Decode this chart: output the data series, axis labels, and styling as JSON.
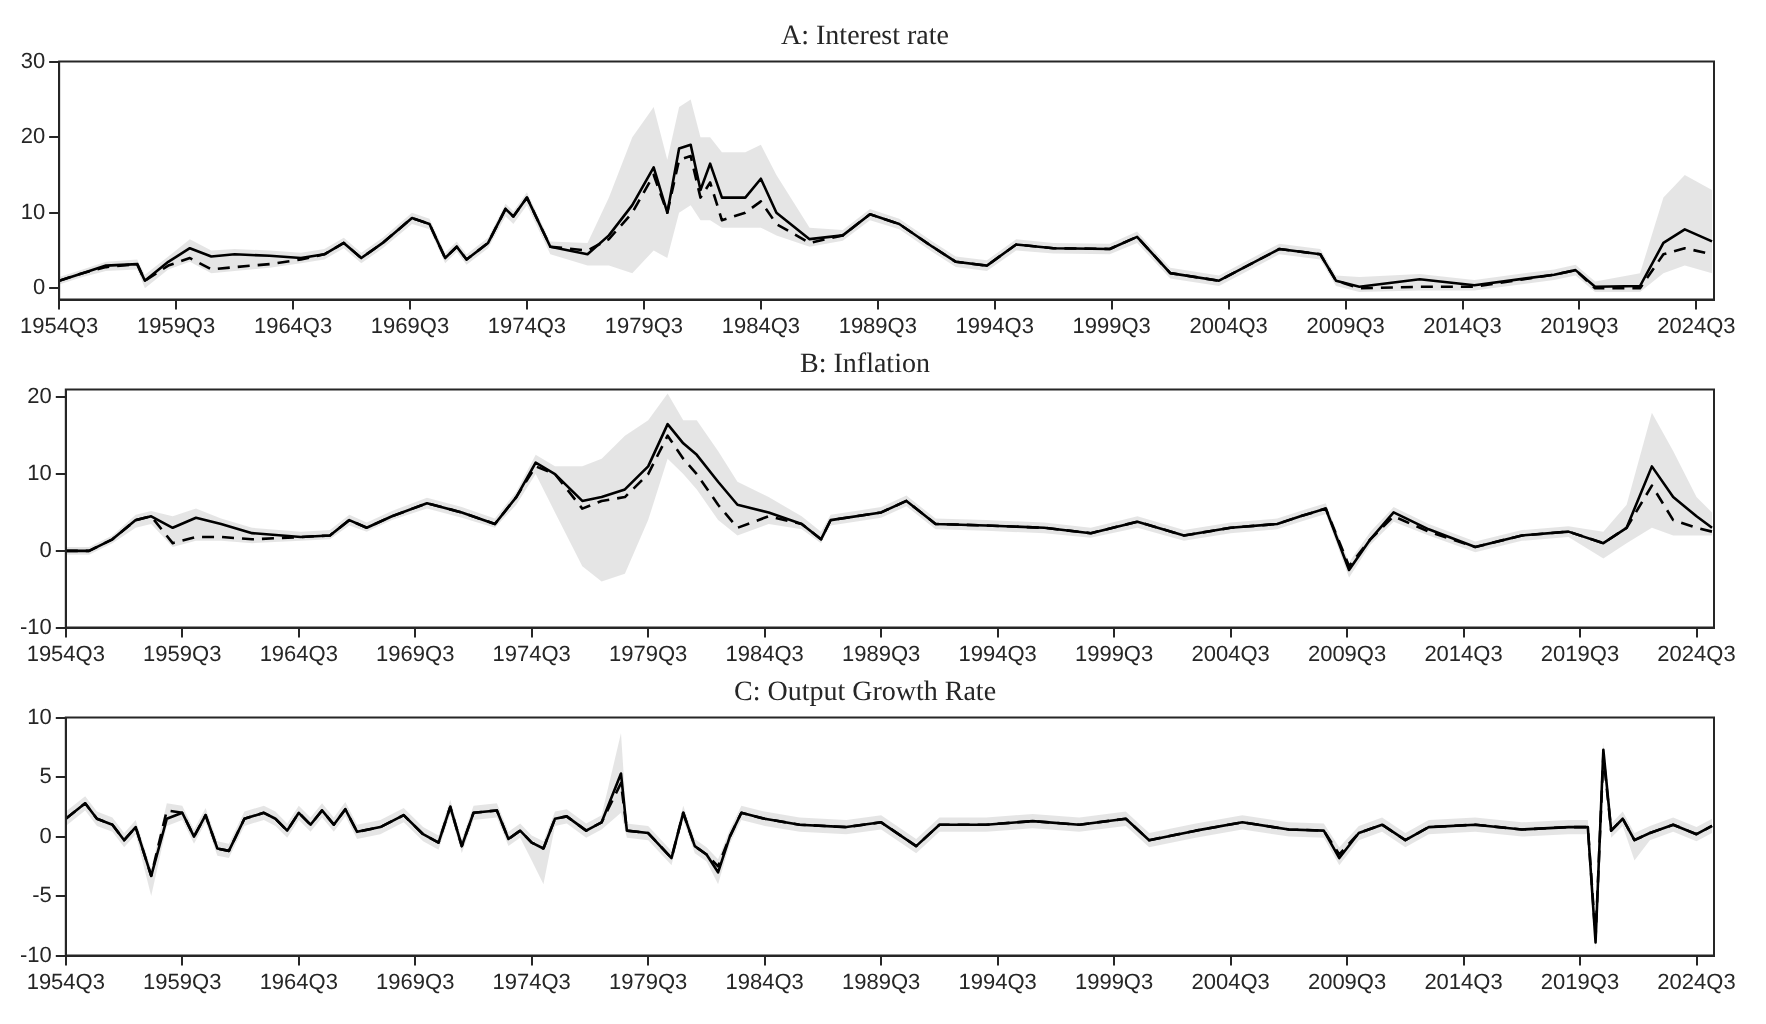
{
  "chart_data": [
    {
      "type": "line",
      "title": "A: Interest rate",
      "xlim": [
        "1954-07",
        "2025-04"
      ],
      "ylim": [
        -1.5,
        30
      ],
      "yticks": [
        0,
        10,
        20,
        30
      ],
      "grid": false,
      "legend": false,
      "marker": "none",
      "xticks": [
        {
          "value": "1954-07",
          "label": "1954Q3"
        },
        {
          "value": "1959-07",
          "label": "1959Q3"
        },
        {
          "value": "1964-07",
          "label": "1964Q3"
        },
        {
          "value": "1969-07",
          "label": "1969Q3"
        },
        {
          "value": "1974-07",
          "label": "1974Q3"
        },
        {
          "value": "1979-07",
          "label": "1979Q3"
        },
        {
          "value": "1984-07",
          "label": "1984Q3"
        },
        {
          "value": "1989-07",
          "label": "1989Q3"
        },
        {
          "value": "1994-07",
          "label": "1994Q3"
        },
        {
          "value": "1999-07",
          "label": "1999Q3"
        },
        {
          "value": "2004-07",
          "label": "2004Q3"
        },
        {
          "value": "2009-07",
          "label": "2009Q3"
        },
        {
          "value": "2014-07",
          "label": "2014Q3"
        },
        {
          "value": "2019-07",
          "label": "2019Q3"
        },
        {
          "value": "2024-07",
          "label": "2024Q3"
        }
      ],
      "x": [
        "1954-07",
        "1955-07",
        "1956-07",
        "1957-11",
        "1958-03",
        "1959-03",
        "1960-02",
        "1961-01",
        "1962-01",
        "1963-07",
        "1964-11",
        "1965-11",
        "1966-09",
        "1967-06",
        "1968-05",
        "1969-08",
        "1970-05",
        "1971-01",
        "1971-07",
        "1971-12",
        "1972-11",
        "1973-08",
        "1973-12",
        "1974-07",
        "1975-07",
        "1977-02",
        "1978-01",
        "1979-01",
        "1979-12",
        "1980-07",
        "1981-01",
        "1981-07",
        "1981-12",
        "1982-05",
        "1982-11",
        "1983-11",
        "1984-07",
        "1985-03",
        "1986-08",
        "1988-01",
        "1989-03",
        "1990-06",
        "1991-11",
        "1992-11",
        "1994-03",
        "1995-06",
        "1997-01",
        "1999-06",
        "2000-08",
        "2002-01",
        "2004-02",
        "2006-09",
        "2008-06",
        "2009-02",
        "2010-02",
        "2012-09",
        "2015-01",
        "2018-06",
        "2019-05",
        "2020-03",
        "2022-02",
        "2023-02",
        "2024-01",
        "2025-03"
      ],
      "series": [
        {
          "color": "#000000",
          "line_style": "solid",
          "values": [
            1,
            2,
            3,
            3.2,
            1,
            3.5,
            5.3,
            4.2,
            4.5,
            4.3,
            4,
            4.5,
            6,
            4,
            6,
            9.3,
            8.5,
            4,
            5.5,
            3.8,
            6,
            10.5,
            9.5,
            12,
            5.5,
            4.5,
            7,
            11,
            16,
            10,
            18.5,
            19,
            13,
            16.5,
            12,
            12,
            14.5,
            10,
            6.5,
            7,
            9.8,
            8.5,
            5.5,
            3.5,
            3,
            5.8,
            5.3,
            5.2,
            6.8,
            2,
            1,
            5.2,
            4.5,
            1,
            0.2,
            1.2,
            0.4,
            1.8,
            2.4,
            0.2,
            0.3,
            6,
            7.8,
            6.2
          ]
        },
        {
          "color": "#000000",
          "line_style": "dashed",
          "values": [
            1,
            2,
            2.8,
            3.2,
            1,
            3,
            4,
            2.5,
            2.8,
            3.2,
            3.8,
            4.5,
            6,
            4,
            6,
            9.3,
            8.5,
            4,
            5.5,
            3.8,
            6,
            10.5,
            9.5,
            12,
            5.5,
            5,
            6.5,
            10,
            15,
            10,
            17,
            17.5,
            12,
            14,
            9,
            10,
            11.5,
            8.5,
            6,
            7,
            9.8,
            8.5,
            5.5,
            3.5,
            3,
            5.8,
            5.3,
            5.2,
            6.8,
            2,
            1,
            5.2,
            4.5,
            1,
            0,
            0.2,
            0.2,
            1.8,
            2.4,
            0,
            0,
            4.5,
            5.3,
            4.5
          ],
          "lower": [
            0.5,
            1.5,
            2.3,
            2.5,
            0,
            2.5,
            3.5,
            2,
            2.3,
            2.7,
            3.3,
            3.8,
            5.3,
            3.3,
            5.3,
            8.5,
            7.8,
            3.3,
            4.8,
            3.1,
            5.3,
            9.5,
            8.5,
            11,
            4.5,
            3,
            3,
            2,
            5,
            4,
            10,
            11,
            9,
            9,
            8,
            8,
            8,
            7,
            5.5,
            6.3,
            9,
            7.8,
            4.8,
            2.8,
            2.3,
            5,
            4.6,
            4.5,
            6,
            1.3,
            0.3,
            4.5,
            3.8,
            0.3,
            -0.5,
            -0.3,
            -0.3,
            1.1,
            1.7,
            -0.5,
            -0.5,
            2,
            3,
            2
          ],
          "upper": [
            1.5,
            2.5,
            3.5,
            3.8,
            1.8,
            4.2,
            6.5,
            5,
            5.2,
            5,
            4.7,
            5.2,
            6.7,
            4.7,
            6.7,
            10,
            9.2,
            4.7,
            6.2,
            4.5,
            6.7,
            11.2,
            10.2,
            12.7,
            6.2,
            6,
            12,
            20,
            24,
            17,
            24,
            25,
            20,
            20,
            18,
            18,
            19,
            15,
            8,
            7.7,
            10.5,
            9.2,
            6.2,
            4.2,
            3.7,
            6.5,
            6,
            5.9,
            7.5,
            2.7,
            1.7,
            5.9,
            5.2,
            1.7,
            1.5,
            1.9,
            1.1,
            2.5,
            3.1,
            0.9,
            2,
            12,
            15,
            13
          ]
        }
      ]
    },
    {
      "type": "line",
      "title": "B: Inflation",
      "xlim": [
        "1954-07",
        "2025-04"
      ],
      "ylim": [
        -10,
        21
      ],
      "yticks": [
        -10,
        0,
        10,
        20
      ],
      "grid": false,
      "legend": false,
      "marker": "none",
      "xticks": [
        {
          "value": "1954-07",
          "label": "1954Q3"
        },
        {
          "value": "1959-07",
          "label": "1959Q3"
        },
        {
          "value": "1964-07",
          "label": "1964Q3"
        },
        {
          "value": "1969-07",
          "label": "1969Q3"
        },
        {
          "value": "1974-07",
          "label": "1974Q3"
        },
        {
          "value": "1979-07",
          "label": "1979Q3"
        },
        {
          "value": "1984-07",
          "label": "1984Q3"
        },
        {
          "value": "1989-07",
          "label": "1989Q3"
        },
        {
          "value": "1994-07",
          "label": "1994Q3"
        },
        {
          "value": "1999-07",
          "label": "1999Q3"
        },
        {
          "value": "2004-07",
          "label": "2004Q3"
        },
        {
          "value": "2009-07",
          "label": "2009Q3"
        },
        {
          "value": "2014-07",
          "label": "2014Q3"
        },
        {
          "value": "2019-07",
          "label": "2019Q3"
        },
        {
          "value": "2024-07",
          "label": "2024Q3"
        }
      ],
      "x": [
        "1954-07",
        "1955-07",
        "1956-07",
        "1957-07",
        "1958-03",
        "1959-02",
        "1960-02",
        "1961-03",
        "1962-07",
        "1964-08",
        "1965-11",
        "1966-09",
        "1967-06",
        "1968-07",
        "1970-01",
        "1971-07",
        "1972-12",
        "1973-11",
        "1974-09",
        "1975-07",
        "1976-09",
        "1977-07",
        "1978-07",
        "1979-07",
        "1980-05",
        "1981-01",
        "1981-08",
        "1982-07",
        "1983-05",
        "1984-09",
        "1986-02",
        "1986-12",
        "1987-05",
        "1989-07",
        "1990-08",
        "1991-11",
        "1994-01",
        "1996-07",
        "1998-07",
        "2000-07",
        "2002-07",
        "2004-07",
        "2006-07",
        "2007-07",
        "2008-08",
        "2009-08",
        "2010-07",
        "2011-07",
        "2013-01",
        "2015-01",
        "2017-01",
        "2019-01",
        "2020-07",
        "2021-07",
        "2022-08",
        "2023-07",
        "2024-07",
        "2025-03"
      ],
      "series": [
        {
          "color": "#000000",
          "line_style": "solid",
          "values": [
            0,
            0,
            1.5,
            4,
            4.5,
            3,
            4.3,
            3.5,
            2.3,
            1.8,
            2,
            4,
            3,
            4.5,
            6.2,
            5,
            3.5,
            7,
            11.5,
            10,
            6.5,
            7,
            8,
            11,
            16.5,
            14,
            12.5,
            9,
            6,
            5,
            3.5,
            1.5,
            4,
            5,
            6.5,
            3.5,
            3.3,
            3,
            2.3,
            3.8,
            2,
            3,
            3.5,
            4.5,
            5.5,
            -2.5,
            1.5,
            5,
            2.8,
            0.5,
            2,
            2.5,
            1,
            3,
            11,
            7,
            4.5,
            3
          ]
        },
        {
          "color": "#000000",
          "line_style": "dashed",
          "values": [
            0,
            0,
            1.5,
            4,
            4.5,
            1,
            1.8,
            1.8,
            1.5,
            1.8,
            2,
            4,
            3,
            4.5,
            6.2,
            5,
            3.5,
            7,
            11,
            10,
            5.5,
            6.5,
            7,
            10,
            15,
            12,
            10,
            6,
            3,
            4.5,
            3.5,
            1.5,
            4,
            5,
            6.5,
            3.5,
            3.3,
            3,
            2.3,
            3.8,
            2,
            3,
            3.5,
            4.5,
            5.5,
            -2,
            1.5,
            4.5,
            2.5,
            0.5,
            2,
            2.5,
            1,
            3,
            8.5,
            4,
            3,
            2.5
          ],
          "lower": [
            -0.5,
            -0.5,
            1,
            3,
            3.5,
            0.5,
            1.3,
            1.3,
            1,
            1.3,
            1.5,
            3.3,
            2.5,
            4,
            5.5,
            4.3,
            3,
            6,
            10,
            5,
            -2,
            -4,
            -3,
            4,
            12,
            10,
            8,
            4,
            2,
            3.5,
            2.8,
            1,
            3.3,
            4.3,
            5.8,
            2.8,
            2.6,
            2.3,
            1.7,
            3,
            1.3,
            2.3,
            2.8,
            3.8,
            4.8,
            -3.5,
            0.8,
            3.8,
            2,
            -0.2,
            1.3,
            1.8,
            -1,
            1,
            3,
            2,
            2,
            2
          ],
          "upper": [
            0.5,
            0.5,
            2,
            4.7,
            5.2,
            4.5,
            5.5,
            4.2,
            3,
            2.5,
            2.7,
            4.7,
            3.7,
            5.2,
            6.9,
            5.7,
            4.2,
            7.7,
            12.5,
            11,
            11,
            12,
            15,
            17,
            20.5,
            17,
            17,
            13,
            9,
            7,
            4.5,
            2.5,
            4.7,
            5.7,
            7.2,
            4.2,
            4,
            3.7,
            3,
            4.5,
            2.7,
            3.7,
            4.2,
            5.2,
            6.2,
            -1.5,
            2.5,
            5.7,
            3.5,
            1.2,
            2.7,
            3.2,
            2.5,
            6,
            18,
            13,
            7,
            5
          ]
        }
      ]
    },
    {
      "type": "line",
      "title": "C: Output Growth Rate",
      "xlim": [
        "1954-07",
        "2025-04"
      ],
      "ylim": [
        -10,
        10
      ],
      "yticks": [
        -10,
        -5,
        0,
        5,
        10
      ],
      "grid": false,
      "legend": false,
      "marker": "none",
      "xticks": [
        {
          "value": "1954-07",
          "label": "1954Q3"
        },
        {
          "value": "1959-07",
          "label": "1959Q3"
        },
        {
          "value": "1964-07",
          "label": "1964Q3"
        },
        {
          "value": "1969-07",
          "label": "1969Q3"
        },
        {
          "value": "1974-07",
          "label": "1974Q3"
        },
        {
          "value": "1979-07",
          "label": "1979Q3"
        },
        {
          "value": "1984-07",
          "label": "1984Q3"
        },
        {
          "value": "1989-07",
          "label": "1989Q3"
        },
        {
          "value": "1994-07",
          "label": "1994Q3"
        },
        {
          "value": "1999-07",
          "label": "1999Q3"
        },
        {
          "value": "2004-07",
          "label": "2004Q3"
        },
        {
          "value": "2009-07",
          "label": "2009Q3"
        },
        {
          "value": "2014-07",
          "label": "2014Q3"
        },
        {
          "value": "2019-07",
          "label": "2019Q3"
        },
        {
          "value": "2024-07",
          "label": "2024Q3"
        }
      ],
      "x": [
        "1954-07",
        "1955-05",
        "1955-11",
        "1956-07",
        "1957-01",
        "1957-07",
        "1958-03",
        "1958-11",
        "1959-07",
        "1960-01",
        "1960-07",
        "1961-01",
        "1961-07",
        "1962-03",
        "1963-01",
        "1963-07",
        "1964-01",
        "1964-07",
        "1965-01",
        "1965-07",
        "1966-01",
        "1966-07",
        "1967-01",
        "1968-01",
        "1969-01",
        "1969-11",
        "1970-07",
        "1971-01",
        "1971-07",
        "1972-01",
        "1973-01",
        "1973-07",
        "1974-01",
        "1974-07",
        "1975-01",
        "1975-07",
        "1976-01",
        "1976-11",
        "1977-07",
        "1978-05",
        "1978-08",
        "1979-07",
        "1980-07",
        "1981-01",
        "1981-07",
        "1982-01",
        "1982-07",
        "1983-01",
        "1983-07",
        "1984-07",
        "1986-01",
        "1988-01",
        "1989-07",
        "1991-01",
        "1992-01",
        "1994-01",
        "1996-01",
        "1998-01",
        "2000-01",
        "2001-01",
        "2003-01",
        "2005-01",
        "2007-01",
        "2008-07",
        "2009-03",
        "2010-01",
        "2011-01",
        "2012-01",
        "2013-01",
        "2015-01",
        "2017-01",
        "2019-01",
        "2019-11",
        "2020-03",
        "2020-07",
        "2020-11",
        "2021-05",
        "2021-11",
        "2022-07",
        "2023-07",
        "2024-07",
        "2025-03"
      ],
      "series": [
        {
          "color": "#000000",
          "line_style": "solid",
          "values": [
            1.5,
            2.8,
            1.5,
            1,
            -0.3,
            0.8,
            -3.3,
            1.5,
            2,
            0,
            1.8,
            -1,
            -1.2,
            1.5,
            2,
            1.5,
            0.5,
            2,
            1,
            2.2,
            1,
            2.3,
            0.4,
            0.8,
            1.8,
            0.2,
            -0.5,
            2.5,
            -0.8,
            2,
            2.2,
            -0.2,
            0.5,
            -0.5,
            -1,
            1.5,
            1.7,
            0.5,
            1.2,
            5.3,
            0.5,
            0.3,
            -1.8,
            2,
            -0.8,
            -1.5,
            -3,
            0,
            2,
            1.5,
            1,
            0.8,
            1.2,
            -0.8,
            1,
            1,
            1.3,
            1,
            1.5,
            -0.3,
            0.5,
            1.2,
            0.6,
            0.5,
            -1.8,
            0.3,
            1,
            -0.3,
            0.8,
            1,
            0.6,
            0.8,
            0.8,
            -8.9,
            7.3,
            0.5,
            1.5,
            -0.3,
            0.3,
            1,
            0.2,
            0.9
          ]
        },
        {
          "color": "#000000",
          "line_style": "dashed",
          "values": [
            1.5,
            2.8,
            1.5,
            1,
            -0.3,
            0.8,
            -3.3,
            2.2,
            2,
            0,
            1.8,
            -1,
            -1.2,
            1.5,
            2,
            1.5,
            0.5,
            2,
            1,
            2.2,
            1,
            2.3,
            0.4,
            0.8,
            1.8,
            0.2,
            -0.5,
            2.5,
            -0.8,
            2,
            2.2,
            -0.2,
            0.5,
            -0.5,
            -1,
            1.5,
            1.7,
            0.5,
            1.2,
            4.5,
            0.5,
            0.3,
            -1.8,
            2,
            -0.8,
            -1.5,
            -2.5,
            0,
            2,
            1.5,
            1,
            0.8,
            1.2,
            -0.8,
            1,
            1,
            1.3,
            1,
            1.5,
            -0.3,
            0.5,
            1.2,
            0.6,
            0.5,
            -1.5,
            0.3,
            1,
            -0.3,
            0.8,
            1,
            0.6,
            0.8,
            0.8,
            -8.5,
            6.8,
            0.5,
            1.5,
            -0.3,
            0.3,
            1,
            0.2,
            0.9
          ],
          "lower": [
            0.9,
            2.2,
            0.9,
            0.4,
            -0.9,
            0.2,
            -5,
            0.9,
            1.4,
            -0.6,
            1.2,
            -1.6,
            -1.8,
            0.9,
            1.4,
            0.9,
            -0.1,
            1.4,
            0.4,
            1.6,
            0.4,
            1.7,
            -0.2,
            0.2,
            1.2,
            -0.4,
            -1.1,
            1.9,
            -1.4,
            1.4,
            1.6,
            -0.8,
            -0.1,
            -2,
            -4,
            0.9,
            1.1,
            -0.1,
            0.6,
            2,
            -0.1,
            -0.3,
            -2.4,
            1.4,
            -1.4,
            -2.1,
            -4,
            -0.6,
            1.4,
            0.9,
            0.4,
            0.2,
            0.6,
            -1.4,
            0.4,
            0.4,
            0.7,
            0.4,
            0.9,
            -0.9,
            -0.1,
            0.6,
            0,
            -0.1,
            -2.4,
            -0.3,
            0.4,
            -0.9,
            0.2,
            0.4,
            0,
            0.2,
            0.2,
            -9.5,
            6.2,
            -0.1,
            0.9,
            -2,
            -0.3,
            0.4,
            -0.4,
            0.3
          ],
          "upper": [
            2.1,
            3.4,
            2.1,
            1.6,
            0.3,
            1.4,
            -2.7,
            2.8,
            2.6,
            0.6,
            2.4,
            -0.4,
            -0.6,
            2.1,
            2.6,
            2.1,
            1.1,
            2.6,
            1.6,
            2.8,
            1.6,
            2.9,
            1,
            1.4,
            2.4,
            0.8,
            0.1,
            3.1,
            -0.2,
            2.6,
            2.8,
            0.4,
            1.1,
            0.1,
            -0.4,
            2.1,
            2.3,
            1.1,
            1.8,
            8.7,
            1.1,
            0.9,
            -1.2,
            2.6,
            -0.2,
            -0.9,
            -1.9,
            0.6,
            2.6,
            2.1,
            1.6,
            1.4,
            1.8,
            -0.2,
            1.6,
            1.6,
            1.9,
            1.6,
            2.1,
            0.3,
            1.1,
            1.8,
            1.2,
            1.1,
            -0.9,
            0.9,
            1.6,
            0.3,
            1.4,
            1.6,
            1.2,
            1.4,
            1.4,
            -7.9,
            7.9,
            1.1,
            2.1,
            0.3,
            0.9,
            1.6,
            0.8,
            1.5
          ]
        }
      ]
    }
  ]
}
